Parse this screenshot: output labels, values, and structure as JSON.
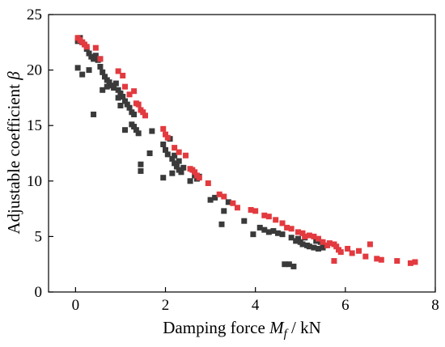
{
  "chart_data": {
    "type": "scatter",
    "xlabel": {
      "text": "Damping force ",
      "symbol": "M",
      "subscript": "f",
      "unit": " / kN"
    },
    "ylabel": {
      "text": "Adjustable coefficient ",
      "symbol": "β"
    },
    "xlim": [
      -0.6,
      8.0
    ],
    "ylim": [
      0,
      25
    ],
    "xticks": [
      "0",
      "2",
      "4",
      "6",
      "8"
    ],
    "xtick_values": [
      0,
      2,
      4,
      6,
      8
    ],
    "yticks": [
      "0",
      "5",
      "10",
      "15",
      "20",
      "25"
    ],
    "ytick_values": [
      0,
      5,
      10,
      15,
      20,
      25
    ],
    "grid": false,
    "legend": "none",
    "series": [
      {
        "color": "#3a3a3a",
        "points": [
          [
            0.05,
            22.6
          ],
          [
            0.1,
            22.9
          ],
          [
            0.15,
            22.5
          ],
          [
            0.2,
            22.3
          ],
          [
            0.25,
            21.9
          ],
          [
            0.3,
            21.5
          ],
          [
            0.35,
            21.2
          ],
          [
            0.4,
            21.0
          ],
          [
            0.45,
            21.3
          ],
          [
            0.5,
            20.9
          ],
          [
            0.55,
            21.0
          ],
          [
            0.05,
            20.2
          ],
          [
            0.15,
            19.6
          ],
          [
            0.3,
            20.0
          ],
          [
            0.4,
            16.0
          ],
          [
            0.55,
            20.3
          ],
          [
            0.6,
            19.8
          ],
          [
            0.65,
            19.4
          ],
          [
            0.7,
            19.1
          ],
          [
            0.75,
            18.9
          ],
          [
            0.8,
            18.6
          ],
          [
            0.85,
            18.4
          ],
          [
            0.9,
            18.8
          ],
          [
            0.95,
            18.2
          ],
          [
            1.0,
            17.9
          ],
          [
            1.05,
            17.6
          ],
          [
            1.1,
            17.2
          ],
          [
            1.15,
            16.9
          ],
          [
            1.2,
            16.6
          ],
          [
            1.25,
            16.2
          ],
          [
            1.3,
            16.0
          ],
          [
            1.35,
            14.6
          ],
          [
            1.4,
            14.3
          ],
          [
            0.6,
            18.2
          ],
          [
            0.7,
            18.5
          ],
          [
            0.85,
            18.6
          ],
          [
            0.95,
            17.5
          ],
          [
            1.0,
            16.8
          ],
          [
            1.1,
            14.6
          ],
          [
            1.25,
            15.1
          ],
          [
            1.3,
            14.9
          ],
          [
            1.45,
            10.9
          ],
          [
            1.45,
            11.5
          ],
          [
            1.65,
            12.5
          ],
          [
            1.7,
            14.5
          ],
          [
            1.95,
            13.3
          ],
          [
            2.0,
            12.8
          ],
          [
            2.05,
            12.4
          ],
          [
            2.1,
            13.8
          ],
          [
            2.15,
            12.0
          ],
          [
            2.2,
            11.6
          ],
          [
            2.25,
            11.3
          ],
          [
            2.3,
            11.0
          ],
          [
            2.35,
            10.8
          ],
          [
            1.95,
            10.3
          ],
          [
            2.15,
            10.7
          ],
          [
            2.2,
            12.3
          ],
          [
            2.3,
            11.8
          ],
          [
            2.4,
            11.2
          ],
          [
            2.55,
            10.0
          ],
          [
            2.65,
            10.5
          ],
          [
            2.7,
            10.2
          ],
          [
            2.75,
            10.4
          ],
          [
            3.0,
            8.3
          ],
          [
            3.1,
            8.5
          ],
          [
            3.25,
            6.1
          ],
          [
            3.3,
            7.3
          ],
          [
            3.4,
            8.1
          ],
          [
            3.75,
            6.4
          ],
          [
            3.95,
            5.2
          ],
          [
            4.1,
            5.8
          ],
          [
            4.2,
            5.6
          ],
          [
            4.3,
            5.4
          ],
          [
            4.4,
            5.5
          ],
          [
            4.5,
            5.3
          ],
          [
            4.6,
            5.2
          ],
          [
            4.65,
            2.5
          ],
          [
            4.75,
            2.5
          ],
          [
            4.8,
            4.9
          ],
          [
            4.85,
            2.3
          ],
          [
            4.9,
            4.6
          ],
          [
            4.95,
            4.8
          ],
          [
            5.0,
            4.5
          ],
          [
            5.05,
            4.3
          ],
          [
            5.1,
            4.9
          ],
          [
            5.15,
            4.2
          ],
          [
            5.2,
            4.1
          ],
          [
            5.3,
            4.0
          ],
          [
            5.35,
            4.6
          ],
          [
            5.4,
            3.9
          ],
          [
            5.45,
            4.5
          ],
          [
            5.5,
            4.0
          ],
          [
            5.55,
            4.2
          ]
        ]
      },
      {
        "color": "#e23a3f",
        "points": [
          [
            0.05,
            22.9
          ],
          [
            0.1,
            22.7
          ],
          [
            0.15,
            22.5
          ],
          [
            0.2,
            22.3
          ],
          [
            0.25,
            22.1
          ],
          [
            0.45,
            22.0
          ],
          [
            0.55,
            21.0
          ],
          [
            0.95,
            19.9
          ],
          [
            1.05,
            19.5
          ],
          [
            1.1,
            18.5
          ],
          [
            1.2,
            17.8
          ],
          [
            1.3,
            18.1
          ],
          [
            1.35,
            17.0
          ],
          [
            1.4,
            16.9
          ],
          [
            1.45,
            16.4
          ],
          [
            1.5,
            16.2
          ],
          [
            1.55,
            15.9
          ],
          [
            1.95,
            14.7
          ],
          [
            2.0,
            14.2
          ],
          [
            2.05,
            13.9
          ],
          [
            2.2,
            13.0
          ],
          [
            2.3,
            12.6
          ],
          [
            2.45,
            12.3
          ],
          [
            2.55,
            11.1
          ],
          [
            2.6,
            11.0
          ],
          [
            2.65,
            10.8
          ],
          [
            2.7,
            10.5
          ],
          [
            2.75,
            10.3
          ],
          [
            2.95,
            9.8
          ],
          [
            3.2,
            8.8
          ],
          [
            3.3,
            8.6
          ],
          [
            3.5,
            8.0
          ],
          [
            3.6,
            7.6
          ],
          [
            3.9,
            7.4
          ],
          [
            4.0,
            7.3
          ],
          [
            4.2,
            6.9
          ],
          [
            4.3,
            6.8
          ],
          [
            4.45,
            6.5
          ],
          [
            4.6,
            6.2
          ],
          [
            4.7,
            5.8
          ],
          [
            4.8,
            5.7
          ],
          [
            4.95,
            5.4
          ],
          [
            5.05,
            5.3
          ],
          [
            5.1,
            5.0
          ],
          [
            5.2,
            5.1
          ],
          [
            5.3,
            5.0
          ],
          [
            5.4,
            4.8
          ],
          [
            5.5,
            4.5
          ],
          [
            5.6,
            4.2
          ],
          [
            5.65,
            4.4
          ],
          [
            5.75,
            4.3
          ],
          [
            5.8,
            4.1
          ],
          [
            5.85,
            3.8
          ],
          [
            5.9,
            3.6
          ],
          [
            5.75,
            2.8
          ],
          [
            6.05,
            3.9
          ],
          [
            6.15,
            3.5
          ],
          [
            6.3,
            3.7
          ],
          [
            6.45,
            3.2
          ],
          [
            6.55,
            4.3
          ],
          [
            6.7,
            3.0
          ],
          [
            6.8,
            2.9
          ],
          [
            7.15,
            2.8
          ],
          [
            7.45,
            2.6
          ],
          [
            7.55,
            2.7
          ]
        ]
      }
    ]
  }
}
